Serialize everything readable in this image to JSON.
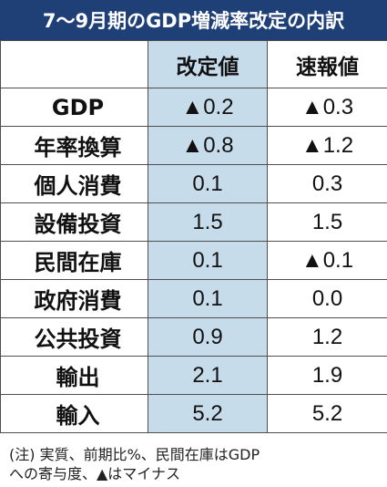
{
  "chart_data": {
    "type": "table",
    "title": "7～9月期のGDP増減率改定の内訳",
    "columns": [
      "改定値",
      "速報値"
    ],
    "rows": [
      {
        "label": "GDP",
        "values": [
          "▲0.2",
          "▲0.3"
        ]
      },
      {
        "label": "年率換算",
        "values": [
          "▲0.8",
          "▲1.2"
        ]
      },
      {
        "label": "個人消費",
        "values": [
          "0.1",
          "0.3"
        ]
      },
      {
        "label": "設備投資",
        "values": [
          "1.5",
          "1.5"
        ]
      },
      {
        "label": "民間在庫",
        "values": [
          "0.1",
          "▲0.1"
        ]
      },
      {
        "label": "政府消費",
        "values": [
          "0.1",
          "0.0"
        ]
      },
      {
        "label": "公共投資",
        "values": [
          "0.9",
          "1.2"
        ]
      },
      {
        "label": "輸出",
        "values": [
          "2.1",
          "1.9"
        ]
      },
      {
        "label": "輸入",
        "values": [
          "5.2",
          "5.2"
        ]
      }
    ],
    "note": "(注) 実質、前期比%、民間在庫はGDP\nへの寄与度、▲はマイナス"
  },
  "colors": {
    "title_bar": "#1f3f77",
    "title_text": "#ffffff",
    "revised_column": "#c7dceb",
    "border": "#4f4f4f",
    "text": "#111111"
  }
}
